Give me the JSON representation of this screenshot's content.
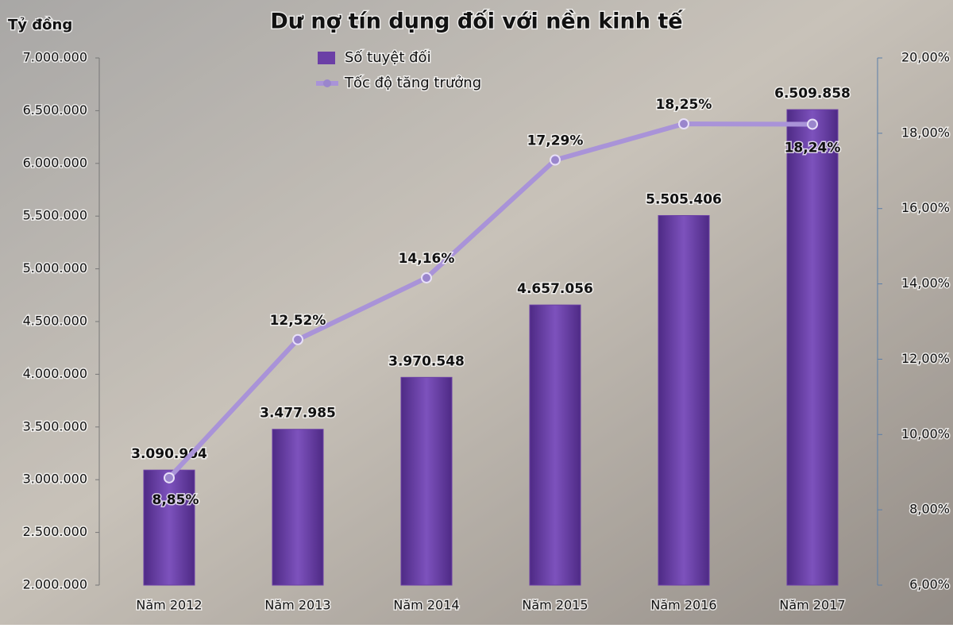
{
  "chart_data": {
    "type": "bar_line",
    "title": "Dư nợ tín dụng đối với nền kinh tế",
    "y_label": "Tỷ đồng",
    "categories": [
      "Năm 2012",
      "Năm 2013",
      "Năm 2014",
      "Năm 2015",
      "Năm 2016",
      "Năm 2017"
    ],
    "series": [
      {
        "name": "Số tuyệt đối",
        "type": "bar",
        "color": "#6b3fa6",
        "values": [
          3090904,
          3477985,
          3970548,
          4657056,
          5505406,
          6509858
        ],
        "value_labels": [
          "3.090.904",
          "3.477.985",
          "3.970.548",
          "4.657.056",
          "5.505.406",
          "6.509.858"
        ]
      },
      {
        "name": "Tốc độ tăng trưởng",
        "type": "line",
        "axis": "y2",
        "color": "#a993d8",
        "values": [
          8.85,
          12.52,
          14.16,
          17.29,
          18.25,
          18.24
        ],
        "value_labels": [
          "8,85%",
          "12,52%",
          "14,16%",
          "17,29%",
          "18,25%",
          "18,24%"
        ]
      }
    ],
    "ylim": [
      2000000,
      7000000
    ],
    "yticks": [
      {
        "value": 2000000,
        "label": "2.000.000"
      },
      {
        "value": 2500000,
        "label": "2.500.000"
      },
      {
        "value": 3000000,
        "label": "3.000.000"
      },
      {
        "value": 3500000,
        "label": "3.500.000"
      },
      {
        "value": 4000000,
        "label": "4.000.000"
      },
      {
        "value": 4500000,
        "label": "4.500.000"
      },
      {
        "value": 5000000,
        "label": "5.000.000"
      },
      {
        "value": 5500000,
        "label": "5.500.000"
      },
      {
        "value": 6000000,
        "label": "6.000.000"
      },
      {
        "value": 6500000,
        "label": "6.500.000"
      },
      {
        "value": 7000000,
        "label": "7.000.000"
      }
    ],
    "y2lim": [
      6,
      20
    ],
    "y2ticks": [
      {
        "value": 6,
        "label": "6,00%"
      },
      {
        "value": 8,
        "label": "8,00%"
      },
      {
        "value": 10,
        "label": "10,00%"
      },
      {
        "value": 12,
        "label": "12,00%"
      },
      {
        "value": 14,
        "label": "14,00%"
      },
      {
        "value": 16,
        "label": "16,00%"
      },
      {
        "value": 18,
        "label": "18,00%"
      },
      {
        "value": 20,
        "label": "20,00%"
      }
    ],
    "legend": "top-left"
  }
}
